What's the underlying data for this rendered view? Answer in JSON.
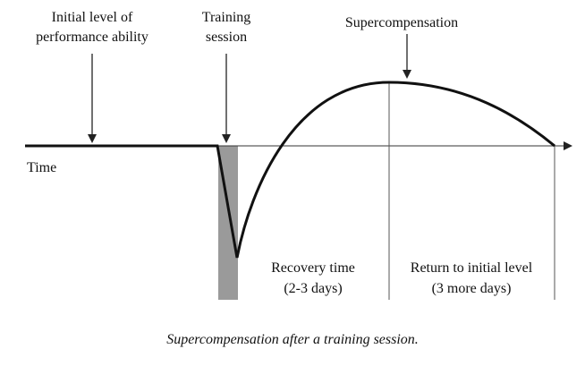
{
  "labels": {
    "initial_level": [
      "Initial level of",
      "performance ability"
    ],
    "training_session": [
      "Training",
      "session"
    ],
    "supercompensation": "Supercompensation",
    "time": "Time",
    "recovery_time": [
      "Recovery time",
      "(2-3 days)"
    ],
    "return_level": [
      "Return to initial level",
      "(3 more days)"
    ]
  },
  "caption": "Supercompensation after a training session."
}
